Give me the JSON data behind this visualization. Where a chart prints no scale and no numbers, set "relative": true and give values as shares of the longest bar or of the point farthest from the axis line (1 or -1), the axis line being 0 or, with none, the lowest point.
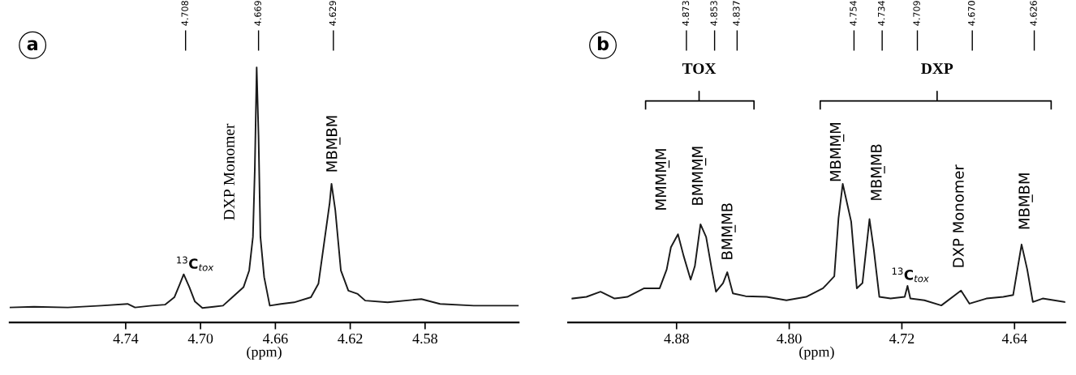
{
  "chart_data": [
    {
      "type": "line",
      "relative": true,
      "xlabel": "(ppm)",
      "xlim": [
        4.802,
        4.53
      ],
      "xticks": [
        4.74,
        {
          "value": 4.7,
          "label": "4.70"
        },
        4.66,
        4.62,
        4.58
      ],
      "marker": "none",
      "line_style": "solid",
      "x": [
        4.802,
        4.789,
        4.771,
        4.753,
        4.739,
        4.735,
        4.726,
        4.719,
        4.714,
        4.711,
        4.709,
        4.706,
        4.703,
        4.699,
        4.693,
        4.688,
        4.683,
        4.677,
        4.674,
        4.672,
        4.671,
        4.67,
        4.669,
        4.668,
        4.666,
        4.663,
        4.657,
        4.65,
        4.641,
        4.637,
        4.634,
        4.631,
        4.63,
        4.628,
        4.625,
        4.621,
        4.616,
        4.612,
        4.6,
        4.582,
        4.572,
        4.554,
        4.53
      ],
      "series": [
        {
          "color": "#1a1a1a",
          "values": [
            0.059,
            0.062,
            0.059,
            0.066,
            0.073,
            0.059,
            0.066,
            0.07,
            0.099,
            0.152,
            0.189,
            0.139,
            0.082,
            0.057,
            0.062,
            0.066,
            0.099,
            0.139,
            0.204,
            0.336,
            0.6,
            1.0,
            0.732,
            0.336,
            0.178,
            0.066,
            0.073,
            0.079,
            0.099,
            0.152,
            0.31,
            0.468,
            0.544,
            0.442,
            0.204,
            0.125,
            0.112,
            0.086,
            0.079,
            0.092,
            0.073,
            0.066,
            0.066
          ]
        }
      ],
      "annotations": [
        "a",
        "4.708",
        "4.669",
        "4.629",
        "$^{13}$C$_{tox}$",
        "DXP Monomer",
        "MBM̲BM"
      ]
    },
    {
      "type": "line",
      "relative": true,
      "xlabel": "(ppm)",
      "xlim": [
        4.957,
        4.604
      ],
      "xticks": [
        4.88,
        {
          "value": 4.8,
          "label": "4.80"
        },
        4.72,
        4.64
      ],
      "marker": "none",
      "line_style": "solid",
      "x": [
        4.954,
        4.944,
        4.934,
        4.924,
        4.915,
        4.903,
        4.892,
        4.887,
        4.884,
        4.879,
        4.875,
        4.87,
        4.867,
        4.863,
        4.859,
        4.855,
        4.852,
        4.847,
        4.844,
        4.84,
        4.831,
        4.816,
        4.802,
        4.788,
        4.776,
        4.768,
        4.765,
        4.762,
        4.756,
        4.752,
        4.748,
        4.743,
        4.74,
        4.736,
        4.728,
        4.718,
        4.716,
        4.714,
        4.704,
        4.692,
        4.678,
        4.672,
        4.66,
        4.648,
        4.641,
        4.635,
        4.631,
        4.627,
        4.62,
        4.604
      ],
      "series": [
        {
          "color": "#1a1a1a",
          "values": [
            0.173,
            0.185,
            0.222,
            0.173,
            0.185,
            0.247,
            0.247,
            0.383,
            0.543,
            0.637,
            0.481,
            0.309,
            0.407,
            0.709,
            0.617,
            0.383,
            0.222,
            0.284,
            0.363,
            0.21,
            0.19,
            0.185,
            0.16,
            0.185,
            0.247,
            0.333,
            0.753,
            1.0,
            0.728,
            0.247,
            0.284,
            0.746,
            0.531,
            0.185,
            0.173,
            0.185,
            0.264,
            0.173,
            0.16,
            0.123,
            0.23,
            0.136,
            0.173,
            0.185,
            0.198,
            0.563,
            0.383,
            0.148,
            0.173,
            0.148
          ]
        }
      ],
      "annotations": [
        "b",
        "4.873",
        "4.853",
        "4.837",
        "4.754",
        "4.734",
        "4.709",
        "4.670",
        "4.626",
        "TOX",
        "DXP",
        "MMMM̲M",
        "BMMM̲M",
        "BMM̲MB",
        "MBMM̲M",
        "MBM̲MB",
        "$^{13}$C$_{tox}$",
        "DXP Monomer",
        "MBM̲BM"
      ]
    }
  ]
}
